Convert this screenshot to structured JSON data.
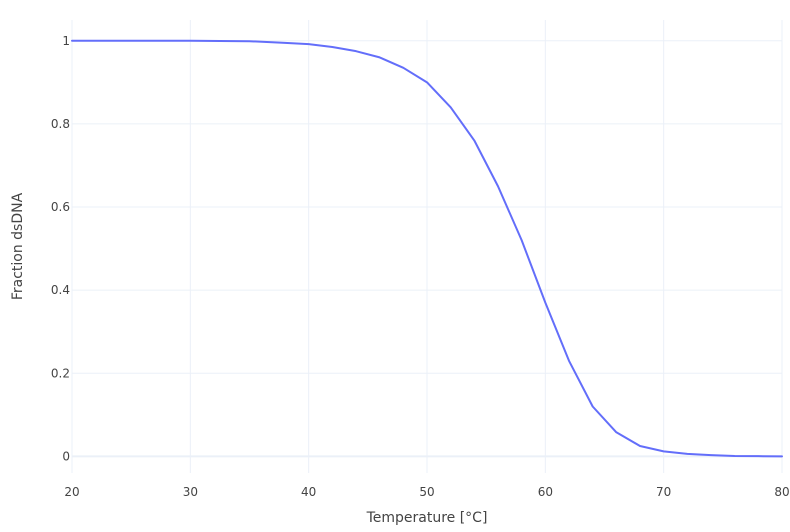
{
  "chart_data": {
    "type": "line",
    "title": "",
    "xlabel": "Temperature [°C]",
    "ylabel": "Fraction dsDNA",
    "xlim": [
      20,
      80
    ],
    "ylim": [
      -0.04,
      1.05
    ],
    "x_ticks": [
      20,
      30,
      40,
      50,
      60,
      70,
      80
    ],
    "x_tick_labels": [
      "20",
      "30",
      "40",
      "50",
      "60",
      "70",
      "80"
    ],
    "y_ticks": [
      0,
      0.2,
      0.4,
      0.6,
      0.8,
      1
    ],
    "y_tick_labels": [
      "0",
      "0.2",
      "0.4",
      "0.6",
      "0.8",
      "1"
    ],
    "grid": true,
    "legend": "none",
    "series": [
      {
        "color": "#636efa",
        "x": [
          20,
          25,
          30,
          35,
          38,
          40,
          42,
          44,
          46,
          48,
          50,
          52,
          54,
          56,
          58,
          60,
          62,
          64,
          66,
          68,
          70,
          72,
          74,
          76,
          78,
          80
        ],
        "y": [
          1.0,
          1.0,
          1.0,
          0.999,
          0.995,
          0.992,
          0.985,
          0.975,
          0.96,
          0.935,
          0.9,
          0.84,
          0.76,
          0.65,
          0.52,
          0.37,
          0.23,
          0.12,
          0.058,
          0.025,
          0.012,
          0.006,
          0.003,
          0.001,
          0.0005,
          0.0
        ]
      }
    ]
  }
}
